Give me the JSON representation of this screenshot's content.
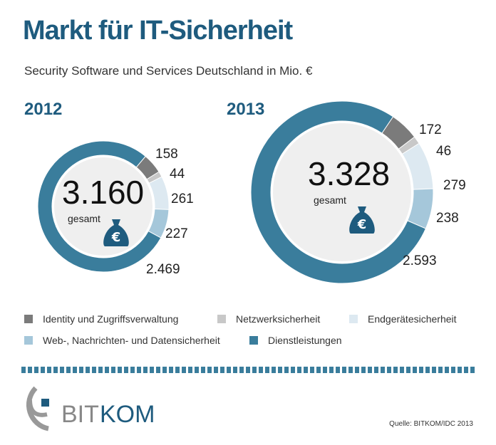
{
  "title": "Markt für IT-Sicherheit",
  "subtitle": "Security Software und Services Deutschland in Mio. €",
  "colors": {
    "Identity und Zugriffsverwaltung": "#7b7b7b",
    "Netzwerksicherheit": "#c8c8c8",
    "Endgerätesicherheit": "#dde9f1",
    "Web-, Nachrichten- und Datensicherheit": "#a5c7da",
    "Dienstleistungen": "#3a7d9c"
  },
  "chart_data": [
    {
      "type": "pie",
      "title": "2012",
      "total_label": "3.160",
      "total_sublabel": "gesamt",
      "categories": [
        "Identity und Zugriffsverwaltung",
        "Netzwerksicherheit",
        "Endgerätesicherheit",
        "Web-, Nachrichten- und Datensicherheit",
        "Dienstleistungen"
      ],
      "values": [
        158,
        44,
        261,
        227,
        2469
      ],
      "value_labels": [
        "158",
        "44",
        "261",
        "227",
        "2.469"
      ]
    },
    {
      "type": "pie",
      "title": "2013",
      "total_label": "3.328",
      "total_sublabel": "gesamt",
      "categories": [
        "Identity und Zugriffsverwaltung",
        "Netzwerksicherheit",
        "Endgerätesicherheit",
        "Web-, Nachrichten- und Datensicherheit",
        "Dienstleistungen"
      ],
      "values": [
        172,
        46,
        279,
        238,
        2593
      ],
      "value_labels": [
        "172",
        "46",
        "279",
        "238",
        "2.593"
      ]
    }
  ],
  "legend": [
    "Identity und Zugriffsverwaltung",
    "Netzwerksicherheit",
    "Endgerätesicherheit",
    "Web-, Nachrichten- und Datensicherheit",
    "Dienstleistungen"
  ],
  "logo_text": "BITKOM",
  "source": "Quelle: BITKOM/IDC 2013"
}
